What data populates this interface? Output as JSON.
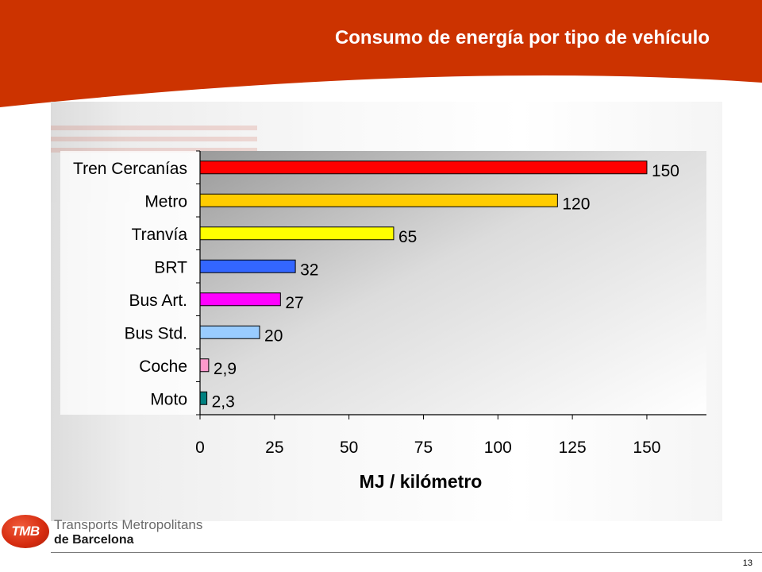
{
  "slide": {
    "title": "Consumo de energía por tipo de vehículo",
    "page_number": "13"
  },
  "brand": {
    "badge": "TMB",
    "line1": "Transports Metropolitans",
    "line2": "de Barcelona"
  },
  "colors": {
    "header": "#cc3300",
    "bar_outline": "#000000"
  },
  "chart_data": {
    "type": "bar",
    "orientation": "horizontal",
    "categories": [
      "Tren Cercanías",
      "Metro",
      "Tranvía",
      "BRT",
      "Bus Art.",
      "Bus Std.",
      "Coche",
      "Moto"
    ],
    "values": [
      150,
      120,
      65,
      32,
      27,
      20,
      2.9,
      2.3
    ],
    "value_labels": [
      "150",
      "120",
      "65",
      "32",
      "27",
      "20",
      "2,9",
      "2,3"
    ],
    "bar_colors": [
      "#ff0000",
      "#ffcc00",
      "#ffff00",
      "#3366ff",
      "#ff00ff",
      "#99ccff",
      "#ff99cc",
      "#008080"
    ],
    "xlabel": "MJ / kilómetro",
    "ylabel": "",
    "xlim": [
      0,
      170
    ],
    "xticks": [
      0,
      25,
      50,
      75,
      100,
      125,
      150
    ],
    "grid": false,
    "legend": "none"
  }
}
